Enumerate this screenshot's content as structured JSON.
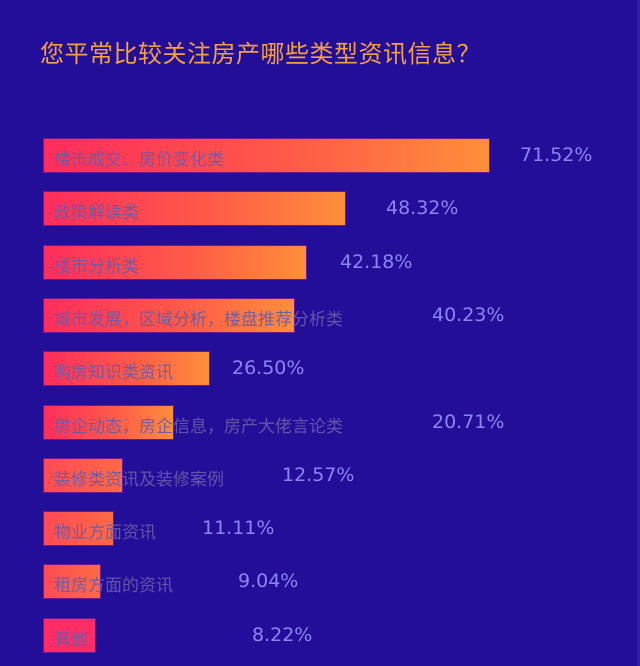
{
  "title": "您平常比较关注房产哪些类型资讯信息？",
  "colors": {
    "background": "#230e9a",
    "title": "#f7a13c",
    "bar_start": "#ff2d5c",
    "bar_end": "#ff8f3a",
    "value_text": "#8d86f0",
    "category_text": "#6b5aa8"
  },
  "rows": [
    {
      "label": "楼市成交、房价变化类",
      "value": "71.52%"
    },
    {
      "label": "政策解读类",
      "value": "48.32%"
    },
    {
      "label": "楼市分析类",
      "value": "42.18%"
    },
    {
      "label": "城市发展，区域分析，楼盘推荐分析类",
      "value": "40.23%"
    },
    {
      "label": "购房知识类资讯",
      "value": "26.50%"
    },
    {
      "label": "房企动态，房企信息，房产大佬言论类",
      "value": "20.71%"
    },
    {
      "label": "装修类资讯及装修案例",
      "value": "12.57%"
    },
    {
      "label": "物业方面资讯",
      "value": "11.11%"
    },
    {
      "label": "租房方面的资讯",
      "value": "9.04%"
    },
    {
      "label": "其他",
      "value": "8.22%"
    }
  ],
  "chart_data": {
    "type": "bar",
    "orientation": "horizontal",
    "title": "您平常比较关注房产哪些类型资讯信息？",
    "categories": [
      "楼市成交、房价变化类",
      "政策解读类",
      "楼市分析类",
      "城市发展，区域分析，楼盘推荐分析类",
      "购房知识类资讯",
      "房企动态，房企信息，房产大佬言论类",
      "装修类资讯及装修案例",
      "物业方面资讯",
      "租房方面的资讯",
      "其他"
    ],
    "values": [
      71.52,
      48.32,
      42.18,
      40.23,
      26.5,
      20.71,
      12.57,
      11.11,
      9.04,
      8.22
    ],
    "unit": "%",
    "xlabel": "",
    "ylabel": "",
    "grid": false,
    "legend": null,
    "data_labels": true
  }
}
